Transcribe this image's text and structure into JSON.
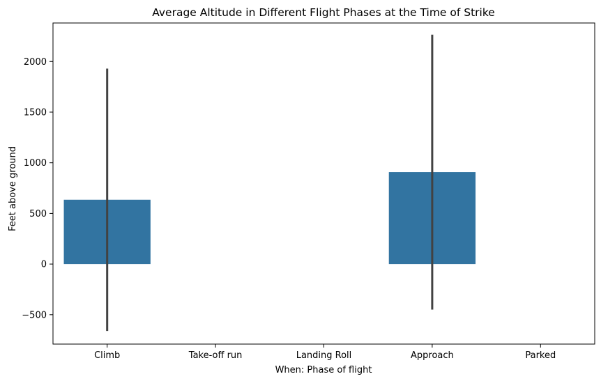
{
  "chart_data": {
    "type": "bar",
    "title": "Average Altitude in Different Flight Phases at the Time of Strike",
    "xlabel": "When: Phase of flight",
    "ylabel": "Feet above ground",
    "categories": [
      "Climb",
      "Take-off run",
      "Landing Roll",
      "Approach",
      "Parked"
    ],
    "values": [
      635,
      null,
      null,
      908,
      null
    ],
    "error_bars": [
      {
        "low": -660,
        "high": 1930
      },
      null,
      null,
      {
        "low": -450,
        "high": 2265
      },
      null
    ],
    "ylim": [
      -790,
      2380
    ],
    "yticks": [
      -500,
      0,
      500,
      1000,
      1500,
      2000
    ],
    "ytick_labels": [
      "−500",
      "0",
      "500",
      "1000",
      "1500",
      "2000"
    ],
    "grid": false,
    "bar_color": "#3274a1",
    "error_color": "#424242"
  }
}
